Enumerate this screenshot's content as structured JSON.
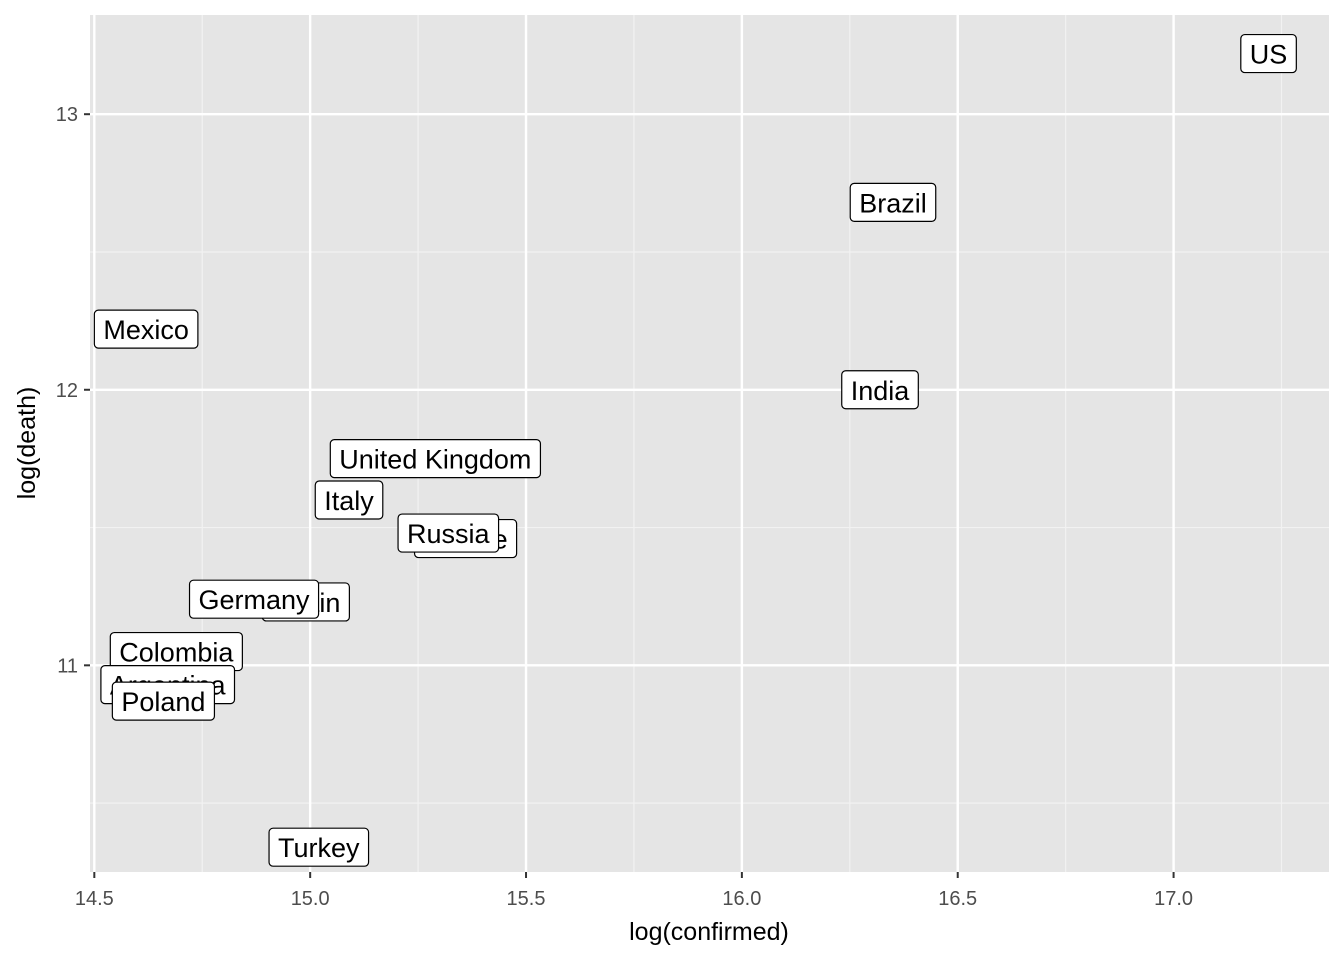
{
  "chart_data": {
    "type": "scatter",
    "xlabel": "log(confirmed)",
    "ylabel": "log(death)",
    "xlim": [
      14.49,
      17.36
    ],
    "ylim": [
      10.25,
      13.36
    ],
    "x_ticks": [
      14.5,
      15.0,
      15.5,
      16.0,
      16.5,
      17.0
    ],
    "x_tick_labels": [
      "14.5",
      "15.0",
      "15.5",
      "16.0",
      "16.5",
      "17.0"
    ],
    "y_ticks": [
      11,
      12,
      13
    ],
    "y_tick_labels": [
      "11",
      "12",
      "13"
    ],
    "grid": true,
    "point_style": "text-label",
    "points": [
      {
        "label": "US",
        "x": 17.22,
        "y": 13.22
      },
      {
        "label": "Brazil",
        "x": 16.35,
        "y": 12.68
      },
      {
        "label": "India",
        "x": 16.32,
        "y": 12.0
      },
      {
        "label": "Mexico",
        "x": 14.62,
        "y": 12.22
      },
      {
        "label": "United Kingdom",
        "x": 15.29,
        "y": 11.75
      },
      {
        "label": "Italy",
        "x": 15.09,
        "y": 11.6
      },
      {
        "label": "France",
        "x": 15.36,
        "y": 11.46
      },
      {
        "label": "Russia",
        "x": 15.32,
        "y": 11.48
      },
      {
        "label": "Spain",
        "x": 14.99,
        "y": 11.23
      },
      {
        "label": "Germany",
        "x": 14.87,
        "y": 11.24
      },
      {
        "label": "Colombia",
        "x": 14.69,
        "y": 11.05
      },
      {
        "label": "Argentina",
        "x": 14.67,
        "y": 10.93
      },
      {
        "label": "Poland",
        "x": 14.66,
        "y": 10.87
      },
      {
        "label": "Turkey",
        "x": 15.02,
        "y": 10.34
      }
    ]
  }
}
